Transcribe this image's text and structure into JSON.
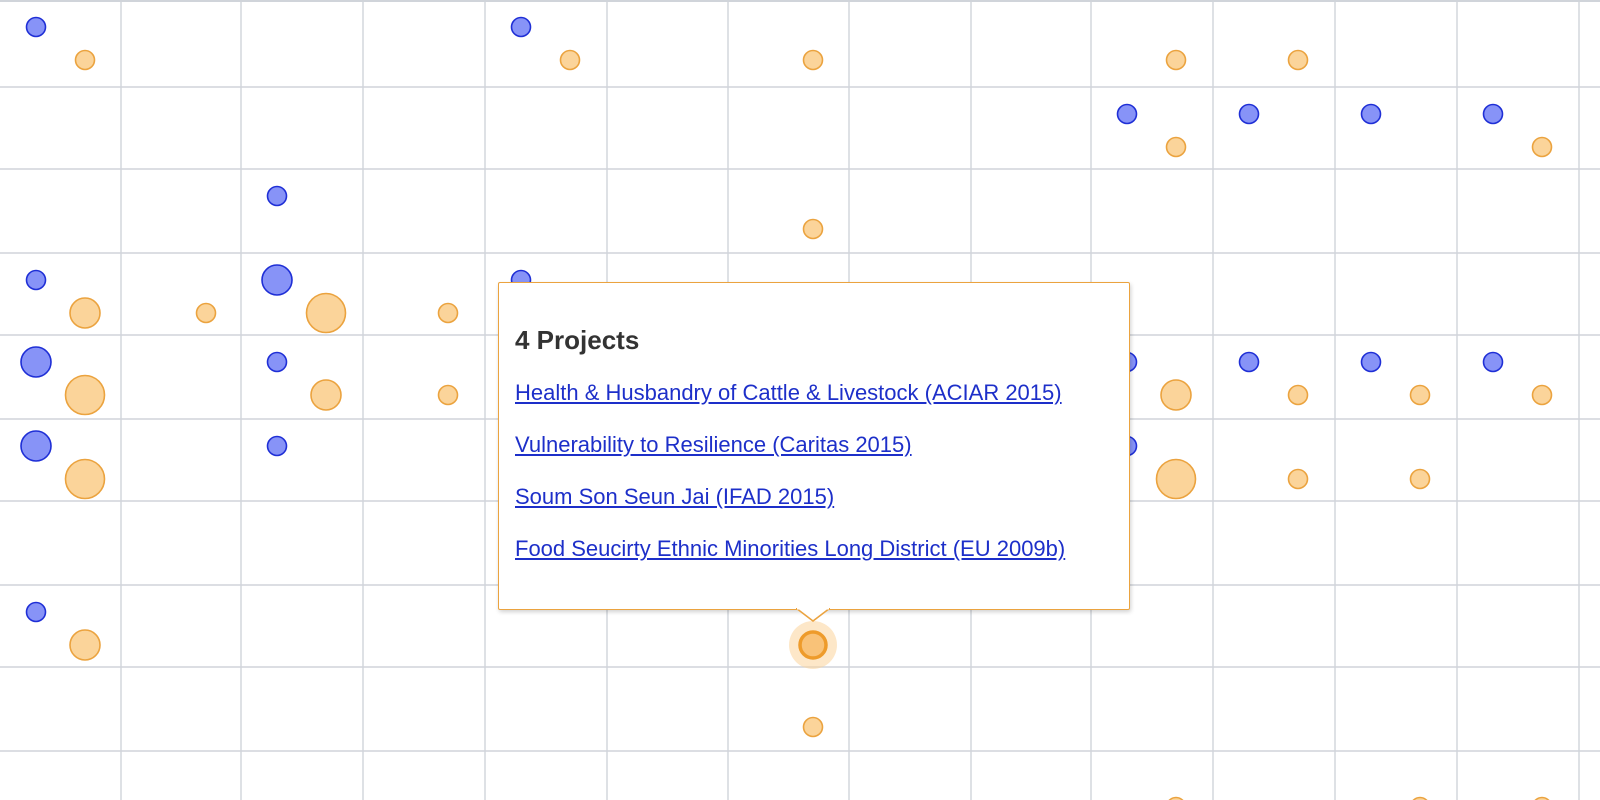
{
  "colors": {
    "blue_fill": "#8793f7",
    "blue_stroke": "#1f2fd6",
    "orange_fill": "#fbd49a",
    "orange_stroke": "#eba33f",
    "grid_line": "#d0d4da",
    "link": "#1d2fc9"
  },
  "chart_data": {
    "type": "scatter",
    "columns": 14,
    "rows": 10,
    "grid": true,
    "series": [
      {
        "color": "#8793f7",
        "points": [
          {
            "col": 0,
            "row": 0,
            "size": 1
          },
          {
            "col": 4,
            "row": 0,
            "size": 1
          },
          {
            "col": 9,
            "row": 1,
            "size": 1
          },
          {
            "col": 10,
            "row": 1,
            "size": 1
          },
          {
            "col": 11,
            "row": 1,
            "size": 1
          },
          {
            "col": 12,
            "row": 1,
            "size": 1
          },
          {
            "col": 2,
            "row": 2,
            "size": 1
          },
          {
            "col": 0,
            "row": 3,
            "size": 1
          },
          {
            "col": 2,
            "row": 3,
            "size": 2
          },
          {
            "col": 4,
            "row": 3,
            "size": 1
          },
          {
            "col": 0,
            "row": 4,
            "size": 2
          },
          {
            "col": 2,
            "row": 4,
            "size": 1
          },
          {
            "col": 9,
            "row": 4,
            "size": 1
          },
          {
            "col": 10,
            "row": 4,
            "size": 1
          },
          {
            "col": 11,
            "row": 4,
            "size": 1
          },
          {
            "col": 12,
            "row": 4,
            "size": 1
          },
          {
            "col": 0,
            "row": 5,
            "size": 2
          },
          {
            "col": 2,
            "row": 5,
            "size": 1
          },
          {
            "col": 9,
            "row": 5,
            "size": 1
          },
          {
            "col": 0,
            "row": 7,
            "size": 1
          }
        ]
      },
      {
        "color": "#fbd49a",
        "points": [
          {
            "col": 0,
            "row": 0,
            "size": 1
          },
          {
            "col": 4,
            "row": 0,
            "size": 1
          },
          {
            "col": 6,
            "row": 0,
            "size": 1
          },
          {
            "col": 9,
            "row": 0,
            "size": 1
          },
          {
            "col": 10,
            "row": 0,
            "size": 1
          },
          {
            "col": 9,
            "row": 1,
            "size": 1
          },
          {
            "col": 12,
            "row": 1,
            "size": 1
          },
          {
            "col": 6,
            "row": 2,
            "size": 1
          },
          {
            "col": 0,
            "row": 3,
            "size": 2
          },
          {
            "col": 1,
            "row": 3,
            "size": 1
          },
          {
            "col": 2,
            "row": 3,
            "size": 3
          },
          {
            "col": 3,
            "row": 3,
            "size": 1
          },
          {
            "col": 0,
            "row": 4,
            "size": 3
          },
          {
            "col": 2,
            "row": 4,
            "size": 2
          },
          {
            "col": 3,
            "row": 4,
            "size": 1
          },
          {
            "col": 9,
            "row": 4,
            "size": 2
          },
          {
            "col": 10,
            "row": 4,
            "size": 1
          },
          {
            "col": 11,
            "row": 4,
            "size": 1
          },
          {
            "col": 12,
            "row": 4,
            "size": 1
          },
          {
            "col": 0,
            "row": 5,
            "size": 3
          },
          {
            "col": 9,
            "row": 5,
            "size": 3
          },
          {
            "col": 10,
            "row": 5,
            "size": 1
          },
          {
            "col": 11,
            "row": 5,
            "size": 1
          },
          {
            "col": 0,
            "row": 7,
            "size": 2
          },
          {
            "col": 6,
            "row": 7,
            "size": 2,
            "active": true
          },
          {
            "col": 6,
            "row": 8,
            "size": 1
          },
          {
            "col": 9,
            "row": 9,
            "size": 1
          },
          {
            "col": 11,
            "row": 9,
            "size": 1
          },
          {
            "col": 12,
            "row": 9,
            "size": 1
          }
        ]
      }
    ]
  },
  "tooltip": {
    "title": "4 Projects",
    "links": [
      "Health & Husbandry of Cattle & Livestock (ACIAR 2015)",
      "Vulnerability to Resilience (Caritas 2015)",
      "Soum Son Seun Jai (IFAD 2015)",
      "Food Seucirty Ethnic Minorities Long District (EU 2009b)"
    ]
  }
}
